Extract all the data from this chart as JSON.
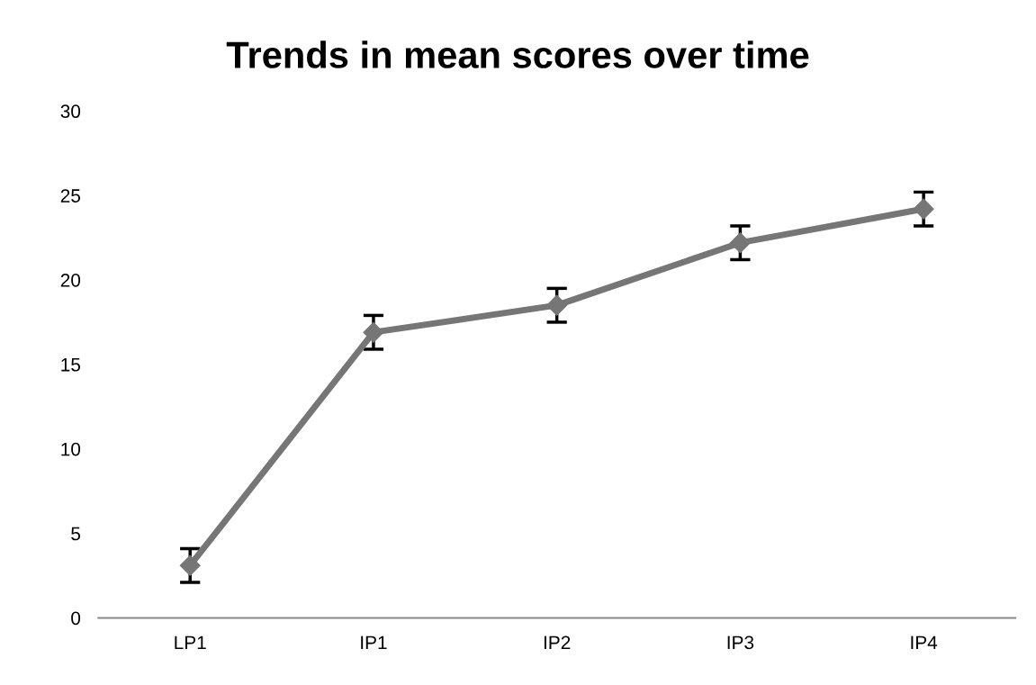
{
  "chart_data": {
    "type": "line",
    "title": "Trends in mean scores over time",
    "categories": [
      "LP1",
      "IP1",
      "IP2",
      "IP3",
      "IP4"
    ],
    "series": [
      {
        "color": "#767676",
        "values": [
          3.1,
          16.9,
          18.5,
          22.2,
          24.2
        ],
        "errors": [
          1,
          1,
          1,
          1,
          1
        ]
      }
    ],
    "ylim": [
      0,
      30
    ],
    "yticks": [
      0,
      5,
      10,
      15,
      20,
      25,
      30
    ],
    "grid": false,
    "legend": false,
    "marker": "diamond",
    "line_style": "solid"
  }
}
